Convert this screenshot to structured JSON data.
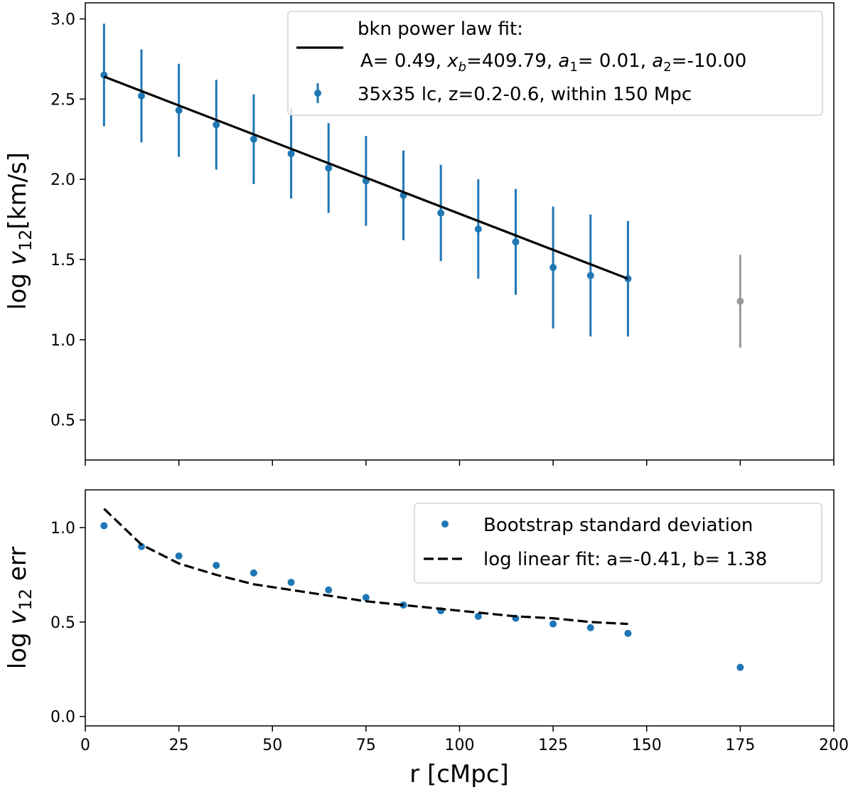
{
  "chart_data": [
    {
      "type": "scatter",
      "panel": "top",
      "title": "",
      "xlabel": "",
      "ylabel": "log v12[km/s]",
      "xlim": [
        0,
        200
      ],
      "ylim": [
        0.25,
        3.1
      ],
      "yticks": [
        "0.5",
        "1.0",
        "1.5",
        "2.0",
        "2.5",
        "3.0"
      ],
      "yticks_values": [
        0.5,
        1.0,
        1.5,
        2.0,
        2.5,
        3.0
      ],
      "xticks_values": [
        0,
        25,
        50,
        75,
        100,
        125,
        150,
        175,
        200
      ],
      "legend_position": "top-right",
      "legend": {
        "line_label_line1": "bkn power law fit:",
        "line_label_line2": "A= 0.49, xb=409.79, a1= 0.01, a2=-10.00",
        "points_label": "35x35 lc, z=0.2-0.6, within 150 Mpc"
      },
      "series": [
        {
          "name": "35x35 lc, z=0.2-0.6, within 150 Mpc",
          "kind": "errorbar",
          "color": "#1f77b4",
          "x": [
            5,
            15,
            25,
            35,
            45,
            55,
            65,
            75,
            85,
            95,
            105,
            115,
            125,
            135,
            145
          ],
          "y": [
            2.65,
            2.52,
            2.43,
            2.34,
            2.25,
            2.16,
            2.07,
            1.99,
            1.9,
            1.79,
            1.69,
            1.61,
            1.45,
            1.4,
            1.38
          ],
          "yerr": [
            0.32,
            0.29,
            0.29,
            0.28,
            0.28,
            0.28,
            0.28,
            0.28,
            0.28,
            0.3,
            0.31,
            0.33,
            0.38,
            0.38,
            0.36
          ]
        },
        {
          "name": "",
          "kind": "errorbar",
          "color": "#999999",
          "x": [
            175
          ],
          "y": [
            1.24
          ],
          "yerr": [
            0.29
          ]
        },
        {
          "name": "bkn power law fit",
          "kind": "line",
          "color": "#000000",
          "x": [
            5,
            145
          ],
          "y": [
            2.64,
            1.38
          ]
        }
      ]
    },
    {
      "type": "scatter",
      "panel": "bottom",
      "title": "",
      "xlabel": "r [cMpc]",
      "ylabel": "log v12 err",
      "xlim": [
        0,
        200
      ],
      "ylim": [
        -0.05,
        1.2
      ],
      "yticks": [
        "0.0",
        "0.5",
        "1.0"
      ],
      "yticks_values": [
        0.0,
        0.5,
        1.0
      ],
      "xticks": [
        "0",
        "25",
        "50",
        "75",
        "100",
        "125",
        "150",
        "175",
        "200"
      ],
      "xticks_values": [
        0,
        25,
        50,
        75,
        100,
        125,
        150,
        175,
        200
      ],
      "legend_position": "top-right",
      "legend": {
        "points_label": "Bootstrap standard deviation",
        "line_label": "log linear fit: a=-0.41, b= 1.38"
      },
      "series": [
        {
          "name": "Bootstrap standard deviation",
          "kind": "points",
          "color": "#1f77b4",
          "x": [
            5,
            15,
            25,
            35,
            45,
            55,
            65,
            75,
            85,
            95,
            105,
            115,
            125,
            135,
            145,
            175
          ],
          "y": [
            1.01,
            0.9,
            0.85,
            0.8,
            0.76,
            0.71,
            0.67,
            0.63,
            0.59,
            0.56,
            0.53,
            0.52,
            0.49,
            0.47,
            0.44,
            0.26
          ]
        },
        {
          "name": "log linear fit: a=-0.41, b= 1.38",
          "kind": "dashed-line",
          "color": "#000000",
          "x": [
            5,
            15,
            25,
            35,
            45,
            55,
            65,
            75,
            85,
            95,
            105,
            115,
            125,
            135,
            145
          ],
          "y": [
            1.1,
            0.91,
            0.81,
            0.75,
            0.7,
            0.67,
            0.64,
            0.61,
            0.59,
            0.57,
            0.55,
            0.53,
            0.52,
            0.5,
            0.49
          ]
        }
      ]
    }
  ]
}
